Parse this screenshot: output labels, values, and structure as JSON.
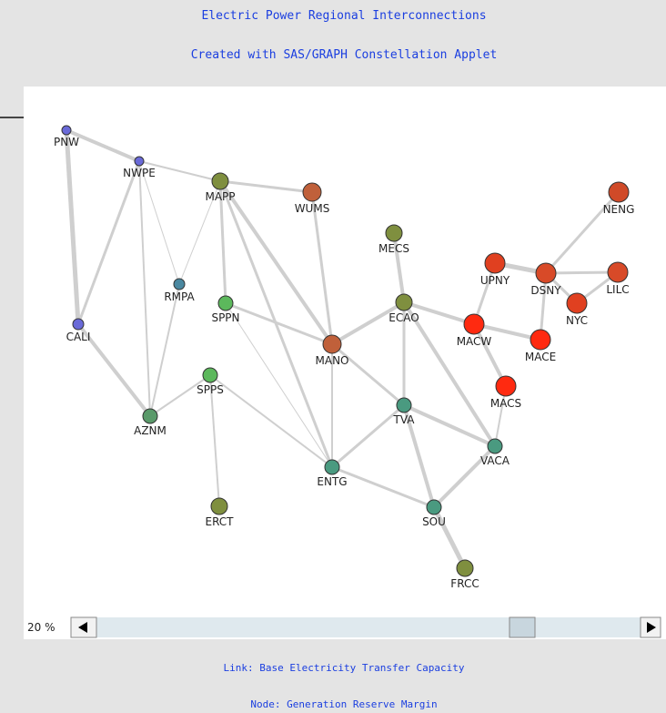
{
  "header": {
    "title": "Electric Power Regional Interconnections",
    "subtitle": "Created with SAS/GRAPH Constellation Applet"
  },
  "nodes": [
    "PNW",
    "NWPE",
    "MAPP",
    "WUMS",
    "MECS",
    "RMPA",
    "SPPN",
    "CALI",
    "MANO",
    "ECAO",
    "SPPS",
    "AZNM",
    "TVA",
    "VACA",
    "ENTG",
    "SOU",
    "ERCT",
    "FRCC",
    "UPNY",
    "DSNY",
    "NENG",
    "LILC",
    "NYC",
    "MACW",
    "MACE",
    "MACS"
  ],
  "zoom": {
    "label": "20 %"
  },
  "footer": {
    "link": "Link: Base Electricity Transfer Capacity",
    "node": "Node: Generation Reserve Margin"
  }
}
